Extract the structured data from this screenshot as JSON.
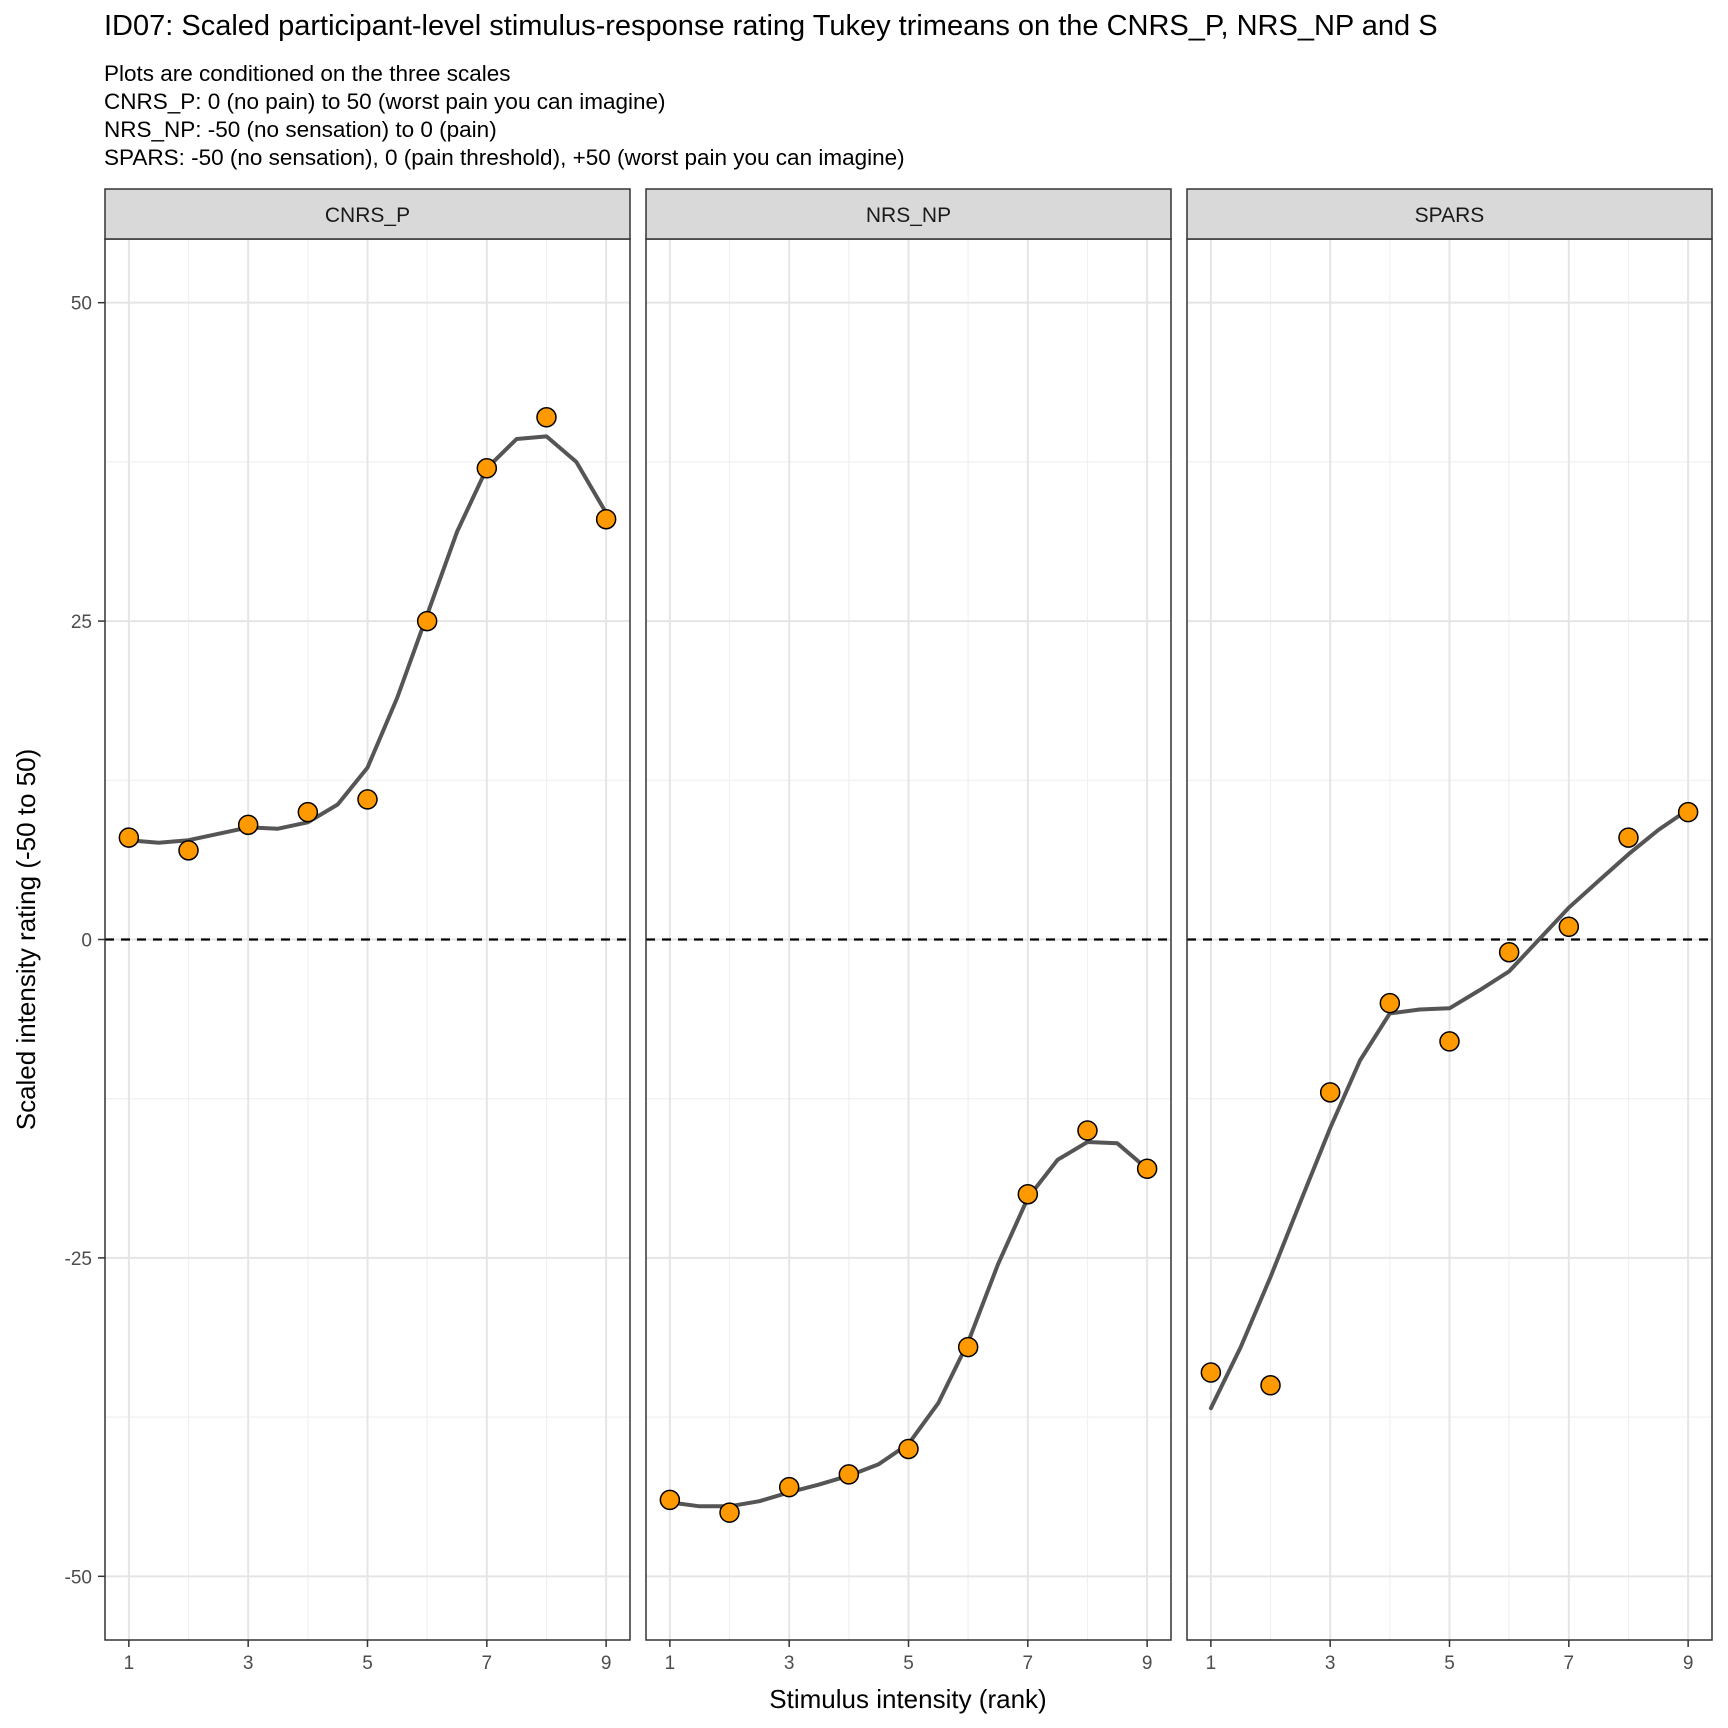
{
  "title": "ID07: Scaled participant-level stimulus-response rating Tukey trimeans on the CNRS_P, NRS_NP and S",
  "subtitle_lines": [
    "Plots are conditioned on the three scales",
    "CNRS_P: 0 (no pain) to 50 (worst pain you can imagine)",
    "NRS_NP: -50 (no sensation) to 0 (pain)",
    "SPARS: -50 (no sensation), 0 (pain threshold), +50 (worst pain you can imagine)"
  ],
  "chart_data": {
    "type": "scatter",
    "xlabel": "Stimulus intensity (rank)",
    "ylabel": "Scaled intensity rating (-50 to 50)",
    "xlim": [
      0.6,
      9.4
    ],
    "ylim": [
      -55,
      55
    ],
    "x_ticks": [
      1,
      3,
      5,
      7,
      9
    ],
    "y_ticks": [
      -50,
      -25,
      0,
      25,
      50
    ],
    "x_minor_grid": [
      2,
      4,
      6,
      8
    ],
    "y_minor_grid": [
      -37.5,
      -12.5,
      12.5,
      37.5
    ],
    "reference_line": {
      "y": 0,
      "style": "dashed"
    },
    "point_color": "#FF9900",
    "point_outline": "#000000",
    "line_color": "#555555",
    "grid": true,
    "facets": [
      {
        "name": "CNRS_P",
        "x": [
          1,
          2,
          3,
          4,
          5,
          6,
          7,
          8,
          9
        ],
        "y": [
          8,
          7,
          9,
          10,
          11,
          25,
          37,
          41,
          33
        ],
        "smooth": [
          [
            1.0,
            7.8
          ],
          [
            1.5,
            7.6
          ],
          [
            2.0,
            7.8
          ],
          [
            2.5,
            8.3
          ],
          [
            3.0,
            8.8
          ],
          [
            3.5,
            8.7
          ],
          [
            4.0,
            9.2
          ],
          [
            4.5,
            10.6
          ],
          [
            5.0,
            13.5
          ],
          [
            5.5,
            19.0
          ],
          [
            6.0,
            25.5
          ],
          [
            6.5,
            32.0
          ],
          [
            7.0,
            37.0
          ],
          [
            7.5,
            39.3
          ],
          [
            8.0,
            39.5
          ],
          [
            8.5,
            37.5
          ],
          [
            9.0,
            33.5
          ]
        ]
      },
      {
        "name": "NRS_NP",
        "x": [
          1,
          2,
          3,
          4,
          5,
          6,
          7,
          8,
          9
        ],
        "y": [
          -44,
          -45,
          -43,
          -42,
          -40,
          -32,
          -20,
          -15,
          -18
        ],
        "smooth": [
          [
            1.0,
            -44.2
          ],
          [
            1.5,
            -44.5
          ],
          [
            2.0,
            -44.5
          ],
          [
            2.5,
            -44.1
          ],
          [
            3.0,
            -43.4
          ],
          [
            3.5,
            -42.8
          ],
          [
            4.0,
            -42.1
          ],
          [
            4.5,
            -41.2
          ],
          [
            5.0,
            -39.6
          ],
          [
            5.5,
            -36.4
          ],
          [
            6.0,
            -31.6
          ],
          [
            6.5,
            -25.5
          ],
          [
            7.0,
            -20.3
          ],
          [
            7.5,
            -17.3
          ],
          [
            8.0,
            -15.9
          ],
          [
            8.5,
            -16.0
          ],
          [
            9.0,
            -18.0
          ]
        ]
      },
      {
        "name": "SPARS",
        "x": [
          1,
          2,
          3,
          4,
          5,
          6,
          7,
          8,
          9
        ],
        "y": [
          -34,
          -35,
          -12,
          -5,
          -8,
          -1,
          1,
          8,
          10
        ],
        "smooth": [
          [
            1.0,
            -36.8
          ],
          [
            1.5,
            -32.0
          ],
          [
            2.0,
            -26.5
          ],
          [
            2.5,
            -20.6
          ],
          [
            3.0,
            -14.8
          ],
          [
            3.5,
            -9.5
          ],
          [
            4.0,
            -5.8
          ],
          [
            4.5,
            -5.5
          ],
          [
            5.0,
            -5.4
          ],
          [
            5.5,
            -4.0
          ],
          [
            6.0,
            -2.5
          ],
          [
            6.5,
            0.0
          ],
          [
            7.0,
            2.5
          ],
          [
            7.5,
            4.6
          ],
          [
            8.0,
            6.7
          ],
          [
            8.5,
            8.6
          ],
          [
            9.0,
            10.2
          ]
        ]
      }
    ]
  }
}
